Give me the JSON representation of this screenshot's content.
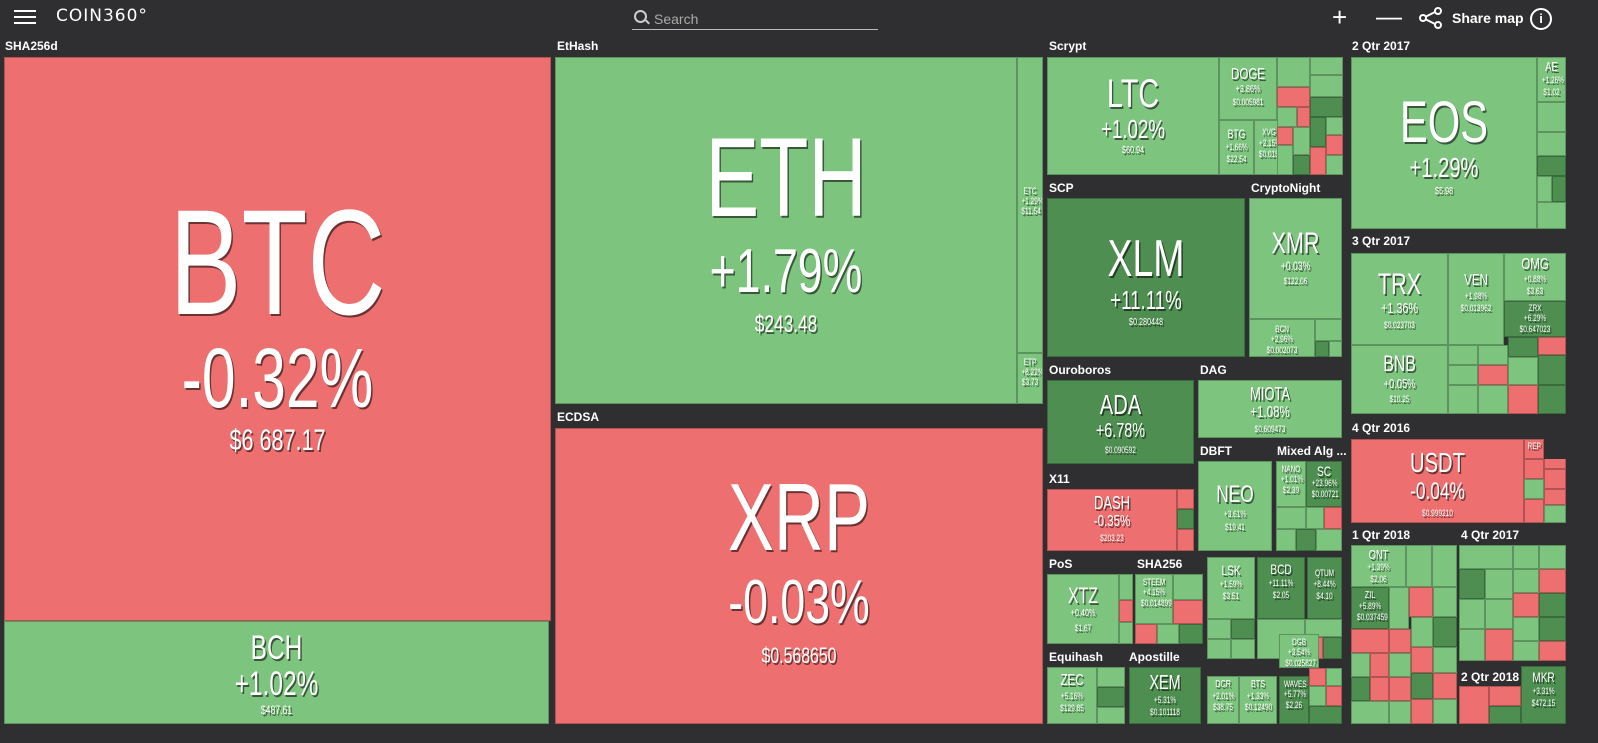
{
  "header": {
    "logo": "COIN360°",
    "search_placeholder": "Search",
    "zoom_in": "+",
    "zoom_out": "—",
    "share_label": "Share map",
    "info": "i"
  },
  "sectors": {
    "sha256d": "SHA256d",
    "ethash": "EtHash",
    "scrypt": "Scrypt",
    "q2_2017": "2 Qtr 2017",
    "ecdsa": "ECDSA",
    "scp": "SCP",
    "cryptonight": "CryptoNight",
    "q3_2017": "3 Qtr 2017",
    "ouroboros": "Ouroboros",
    "dag": "DAG",
    "q4_2016": "4 Qtr 2016",
    "dbft": "DBFT",
    "mixed_alg": "Mixed Alg ...",
    "x11": "X11",
    "q1_2018": "1 Qtr 2018",
    "q4_2017": "4 Qtr 2017",
    "pos": "PoS",
    "sha256": "SHA256",
    "equihash": "Equihash",
    "apostille": "Apostille",
    "q2_2018": "2 Qtr 2018"
  },
  "coins": {
    "btc": {
      "symbol": "BTC",
      "change": "-0.32%",
      "price": "$6 687.17",
      "trend": "down"
    },
    "bch": {
      "symbol": "BCH",
      "change": "+1.02%",
      "price": "$487.61",
      "trend": "up"
    },
    "eth": {
      "symbol": "ETH",
      "change": "+1.79%",
      "price": "$243.48",
      "trend": "up"
    },
    "etc": {
      "symbol": "ETC",
      "change": "+1.29%",
      "price": "$11.54",
      "trend": "up"
    },
    "etp": {
      "symbol": "ETP",
      "change": "+8.22%",
      "price": "$3.73",
      "trend": "up"
    },
    "xrp": {
      "symbol": "XRP",
      "change": "-0.03%",
      "price": "$0.568650",
      "trend": "down"
    },
    "ltc": {
      "symbol": "LTC",
      "change": "+1.02%",
      "price": "$60.94",
      "trend": "up"
    },
    "doge": {
      "symbol": "DOGE",
      "change": "+3.86%",
      "price": "$0.005981",
      "trend": "up"
    },
    "btg": {
      "symbol": "BTG",
      "change": "+1.66%",
      "price": "$22.54",
      "trend": "up"
    },
    "xvg": {
      "symbol": "XVG",
      "change": "+2.15%",
      "price": "$0.0152",
      "trend": "up"
    },
    "eos": {
      "symbol": "EOS",
      "change": "+1.29%",
      "price": "$5.98",
      "trend": "up"
    },
    "ae": {
      "symbol": "AE",
      "change": "+1.26%",
      "price": "$1.02",
      "trend": "up"
    },
    "xlm": {
      "symbol": "XLM",
      "change": "+11.11%",
      "price": "$0.280448",
      "trend": "up"
    },
    "xmr": {
      "symbol": "XMR",
      "change": "+0.03%",
      "price": "$122.06",
      "trend": "up"
    },
    "bcn": {
      "symbol": "BCN",
      "change": "+2.96%",
      "price": "$0.002073",
      "trend": "up"
    },
    "trx": {
      "symbol": "TRX",
      "change": "+1.36%",
      "price": "$0.023703",
      "trend": "up"
    },
    "ven": {
      "symbol": "VEN",
      "change": "+1.98%",
      "price": "$0.013962",
      "trend": "up"
    },
    "omg": {
      "symbol": "OMG",
      "change": "+0.88%",
      "price": "$3.63",
      "trend": "up"
    },
    "zrx": {
      "symbol": "ZRX",
      "change": "+6.29%",
      "price": "$0.647023",
      "trend": "up"
    },
    "bnb": {
      "symbol": "BNB",
      "change": "+0.05%",
      "price": "$10.25",
      "trend": "up"
    },
    "ada": {
      "symbol": "ADA",
      "change": "+6.78%",
      "price": "$0.090592",
      "trend": "up"
    },
    "miota": {
      "symbol": "MIOTA",
      "change": "+1.08%",
      "price": "$0.609473",
      "trend": "up"
    },
    "usdt": {
      "symbol": "USDT",
      "change": "-0.04%",
      "price": "$0.999210",
      "trend": "down"
    },
    "neo": {
      "symbol": "NEO",
      "change": "+3.61%",
      "price": "$19.41",
      "trend": "up"
    },
    "nano": {
      "symbol": "NANO",
      "change": "+1.01%",
      "price": "$2.39",
      "trend": "up"
    },
    "sc": {
      "symbol": "SC",
      "change": "+23.96%",
      "price": "$0.00721",
      "trend": "up"
    },
    "dash": {
      "symbol": "DASH",
      "change": "-0.35%",
      "price": "$203.23",
      "trend": "down"
    },
    "ont": {
      "symbol": "ONT",
      "change": "+1.39%",
      "price": "$2.06",
      "trend": "up"
    },
    "zil": {
      "symbol": "ZIL",
      "change": "+5.89%",
      "price": "$0.037459",
      "trend": "up"
    },
    "xtz": {
      "symbol": "XTZ",
      "change": "+0.40%",
      "price": "$1.67",
      "trend": "up"
    },
    "steem": {
      "symbol": "STEEM",
      "change": "+4.15%",
      "price": "$0.014899",
      "trend": "up"
    },
    "lsk": {
      "symbol": "LSK",
      "change": "+1.59%",
      "price": "$3.51",
      "trend": "up"
    },
    "bcd": {
      "symbol": "BCD",
      "change": "+11.11%",
      "price": "$2.05",
      "trend": "up"
    },
    "qtum": {
      "symbol": "QTUM",
      "change": "+8.44%",
      "price": "$4.10",
      "trend": "up"
    },
    "zec": {
      "symbol": "ZEC",
      "change": "+5.16%",
      "price": "$129.85",
      "trend": "up"
    },
    "xem": {
      "symbol": "XEM",
      "change": "+5.31%",
      "price": "$0.101118",
      "trend": "up"
    },
    "dcr": {
      "symbol": "DCR",
      "change": "+2.01%",
      "price": "$38.75",
      "trend": "up"
    },
    "bts": {
      "symbol": "BTS",
      "change": "+1.33%",
      "price": "$0.12490",
      "trend": "up"
    },
    "dgb": {
      "symbol": "DGB",
      "change": "+3.54%",
      "price": "$0.025827",
      "trend": "up"
    },
    "waves": {
      "symbol": "WAVES",
      "change": "+5.77%",
      "price": "$2.26",
      "trend": "up"
    },
    "mkr": {
      "symbol": "MKR",
      "change": "+3.31%",
      "price": "$472.15",
      "trend": "up"
    },
    "rep": {
      "symbol": "REP",
      "change": "",
      "price": "",
      "trend": "down"
    }
  },
  "colors": {
    "up": "#7dc47e",
    "up_strong": "#4e8f51",
    "down": "#ee6f6f",
    "background": "#2f2f31"
  }
}
